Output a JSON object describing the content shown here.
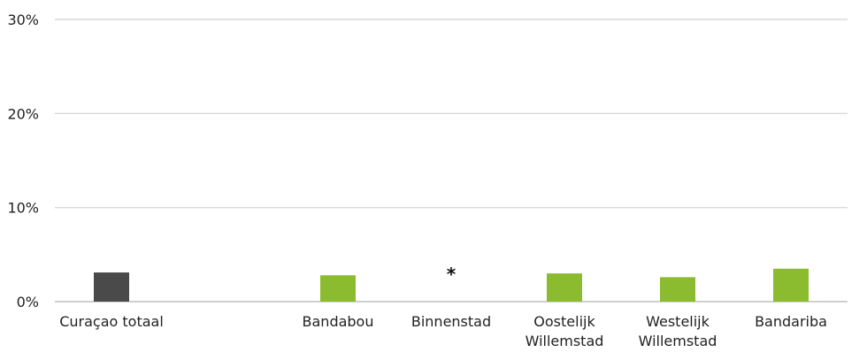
{
  "chart_data": {
    "type": "bar",
    "categories": [
      "Curaçao totaal",
      "",
      "Bandabou",
      "Binnenstad",
      "Oostelijk Willemstad",
      "Westelijk Willemstad",
      "Bandariba"
    ],
    "category_lines": [
      [
        "Curaçao totaal"
      ],
      [],
      [
        "Bandabou"
      ],
      [
        "Binnenstad"
      ],
      [
        "Oostelijk",
        "Willemstad"
      ],
      [
        "Westelijk",
        "Willemstad"
      ],
      [
        "Bandariba"
      ]
    ],
    "values": [
      3.1,
      null,
      2.8,
      null,
      3.0,
      2.6,
      3.5
    ],
    "value_unit": "%",
    "bar_colors": [
      "#4a4a4a",
      null,
      "#8bbc2f",
      null,
      "#8bbc2f",
      "#8bbc2f",
      "#8bbc2f"
    ],
    "markers": [
      {
        "category_index": 3,
        "text": "*",
        "value": 2.9
      }
    ],
    "y_ticks": [
      "0%",
      "10%",
      "20%",
      "30%"
    ],
    "y_tick_values": [
      0,
      10,
      20,
      30
    ],
    "ylim": [
      0,
      30
    ],
    "grid": true,
    "legend": "none",
    "title": "",
    "xlabel": "",
    "ylabel": ""
  }
}
